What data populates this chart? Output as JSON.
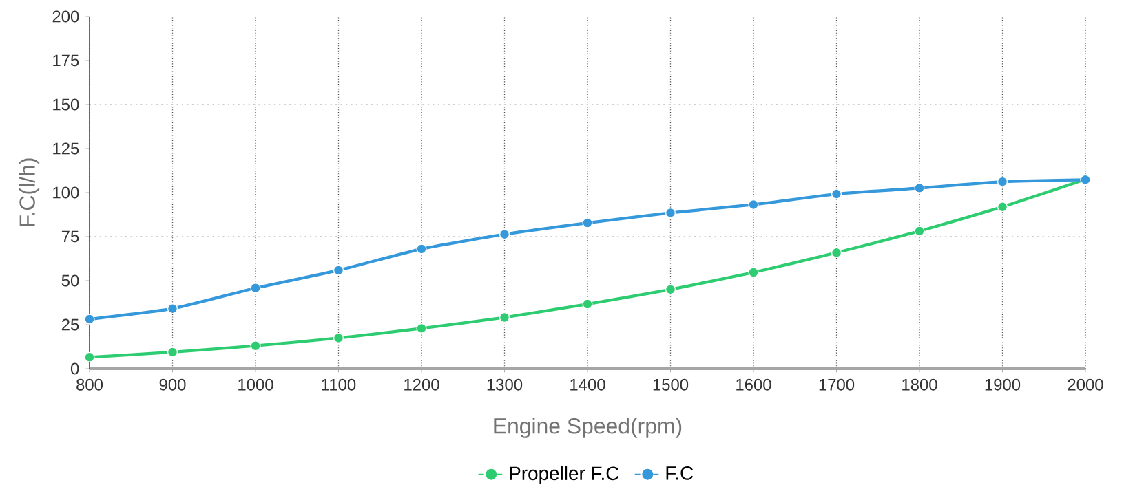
{
  "chart_data": {
    "type": "line",
    "xlabel": "Engine Speed(rpm)",
    "ylabel": "F.C(l/h)",
    "x": [
      800,
      900,
      1000,
      1100,
      1200,
      1300,
      1400,
      1500,
      1600,
      1700,
      1800,
      1900,
      2000
    ],
    "series": [
      {
        "name": "Propeller F.C",
        "color": "#2ecc71",
        "values": [
          6.5,
          9.4,
          13,
          17.4,
          22.9,
          29.1,
          36.7,
          45,
          54.7,
          65.9,
          78.1,
          91.9,
          107.5
        ]
      },
      {
        "name": "F.C",
        "color": "#3498db",
        "values": [
          28.1,
          34.1,
          45.8,
          55.9,
          68,
          76.3,
          82.8,
          88.5,
          93.2,
          99.2,
          102.6,
          106.2,
          107.3
        ]
      }
    ],
    "xlim": [
      800,
      2000
    ],
    "xticks": [
      800,
      900,
      1000,
      1100,
      1200,
      1300,
      1400,
      1500,
      1600,
      1700,
      1800,
      1900,
      2000
    ],
    "ylim": [
      0,
      200
    ],
    "yticks": [
      0,
      25,
      50,
      75,
      100,
      125,
      150,
      175,
      200
    ],
    "grid": "x",
    "marker": "circle",
    "line_style": "solid",
    "legend": "bottom",
    "ref_lines": [
      {
        "axis": "y",
        "value": 75,
        "color": "#cccccc",
        "line_style": "dotted"
      },
      {
        "axis": "y",
        "value": 150,
        "color": "#cccccc",
        "line_style": "dotted"
      }
    ]
  }
}
